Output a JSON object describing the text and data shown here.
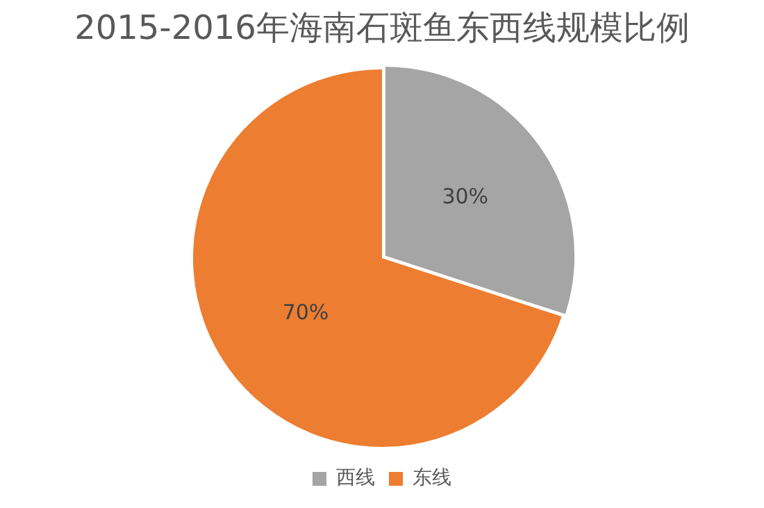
{
  "chart_data": {
    "type": "pie",
    "title": "2015-2016年海南石斑鱼东西线规模比例",
    "categories": [
      "西线",
      "东线"
    ],
    "values": [
      30,
      70
    ],
    "colors": [
      "#a5a5a5",
      "#ed7d31"
    ],
    "value_labels": [
      "30%",
      "70%"
    ],
    "legend": "bottom"
  }
}
